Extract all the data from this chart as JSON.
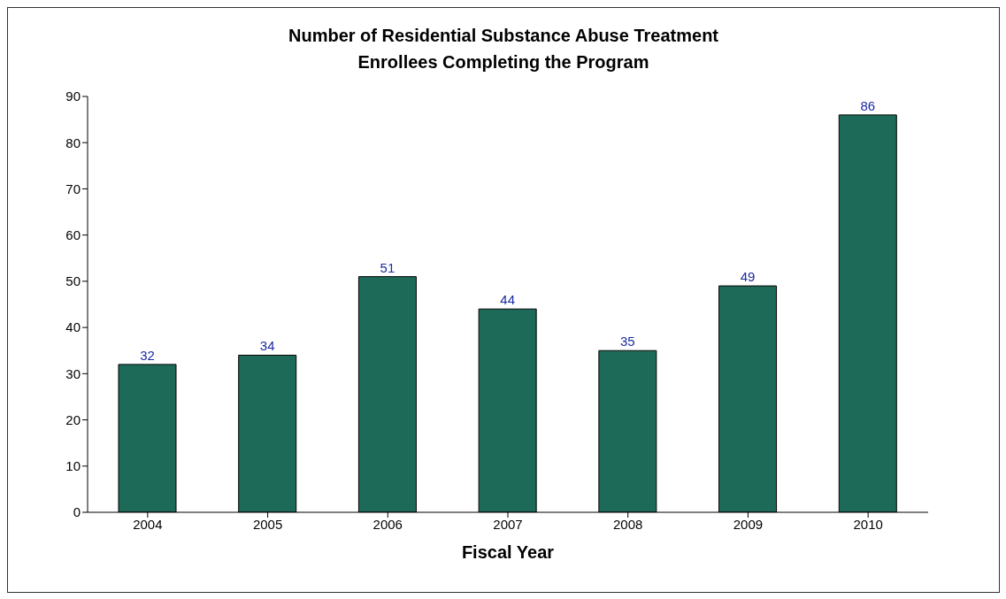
{
  "chart_data": {
    "type": "bar",
    "title": "Number of Residential Substance Abuse Treatment Enrollees Completing the Program",
    "xlabel": "Fiscal Year",
    "categories": [
      "2004",
      "2005",
      "2006",
      "2007",
      "2008",
      "2009",
      "2010"
    ],
    "values": [
      32,
      34,
      51,
      44,
      35,
      49,
      86
    ],
    "color": "#1e6a58",
    "ylim": [
      0,
      90
    ],
    "yticks": [
      0,
      10,
      20,
      30,
      40,
      50,
      60,
      70,
      80,
      90
    ],
    "grid": false,
    "data_labels": true
  }
}
